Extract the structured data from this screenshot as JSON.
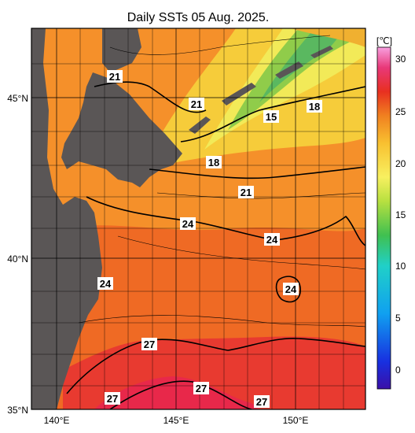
{
  "title": "Daily SSTs 05 Aug. 2025.",
  "colorbar": {
    "unit": "[℃]",
    "tick_labels": [
      "30",
      "25",
      "20",
      "15",
      "10",
      "5",
      "0"
    ]
  },
  "axes": {
    "lat_labels": [
      "45°N",
      "40°N",
      "35°N"
    ],
    "lon_labels": [
      "140°E",
      "145°E",
      "150°E"
    ]
  },
  "contour_labels": [
    "21",
    "21",
    "15",
    "18",
    "18",
    "21",
    "24",
    "24",
    "24",
    "24",
    "27",
    "27",
    "27",
    "27"
  ],
  "colors": {
    "land": "#5a5656",
    "warm_ocean": "#ee5a22",
    "mid_ocean": "#f79a28",
    "cool_ocean": "#f0e040",
    "cold_ocean": "#78c050",
    "hot_ocean": "#e8283c"
  }
}
